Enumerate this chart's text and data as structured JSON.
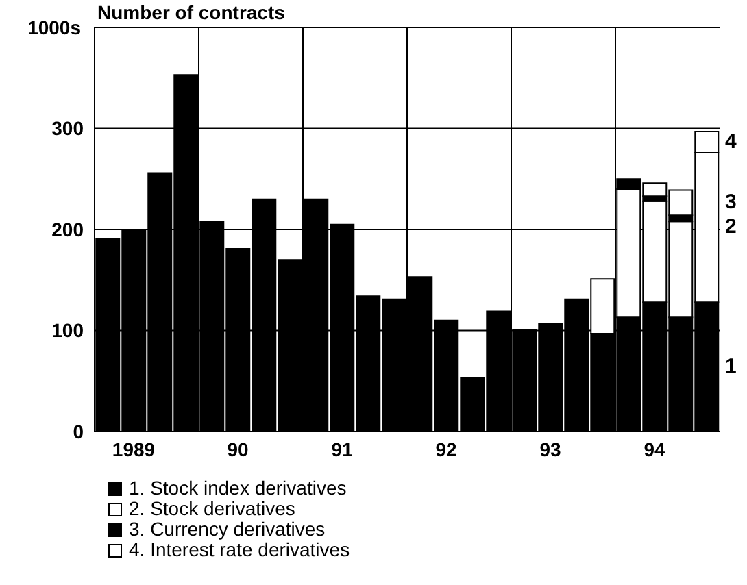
{
  "chart_data": {
    "type": "bar",
    "title": "Number of contracts",
    "ylabel": "1000s",
    "stacked": true,
    "categories": [
      null,
      "1989",
      null,
      null,
      null,
      "90",
      null,
      null,
      null,
      "91",
      null,
      null,
      null,
      "92",
      null,
      null,
      null,
      "93",
      null,
      null,
      null,
      "94",
      null,
      null
    ],
    "series": [
      {
        "name": "1. Stock index derivatives",
        "color": "#000000",
        "values": [
          191,
          200,
          256,
          353,
          208,
          181,
          230,
          170,
          230,
          205,
          134,
          131,
          153,
          110,
          53,
          119,
          101,
          107,
          131,
          97,
          113,
          128,
          113,
          128
        ]
      },
      {
        "name": "2. Stock derivatives",
        "color": "#ffffff",
        "values": [
          null,
          null,
          null,
          null,
          null,
          null,
          null,
          null,
          null,
          null,
          null,
          null,
          null,
          null,
          null,
          null,
          null,
          null,
          null,
          54,
          127,
          100,
          95,
          148
        ]
      },
      {
        "name": "3. Currency derivatives",
        "color": "#000000",
        "values": [
          null,
          null,
          null,
          null,
          null,
          null,
          null,
          null,
          null,
          null,
          null,
          null,
          null,
          null,
          null,
          null,
          null,
          null,
          null,
          null,
          10,
          5,
          6,
          null
        ]
      },
      {
        "name": "4. Interest rate derivatives",
        "color": "#ffffff",
        "values": [
          null,
          null,
          null,
          null,
          null,
          null,
          null,
          null,
          null,
          null,
          null,
          null,
          null,
          null,
          null,
          null,
          null,
          null,
          null,
          null,
          null,
          13,
          25,
          21
        ]
      }
    ],
    "ylim": [
      0,
      400
    ],
    "yticks": [
      0,
      100,
      200,
      300
    ],
    "grid": true,
    "legend": "bottom",
    "annotations": [
      "1",
      "2",
      "3",
      "4"
    ]
  }
}
